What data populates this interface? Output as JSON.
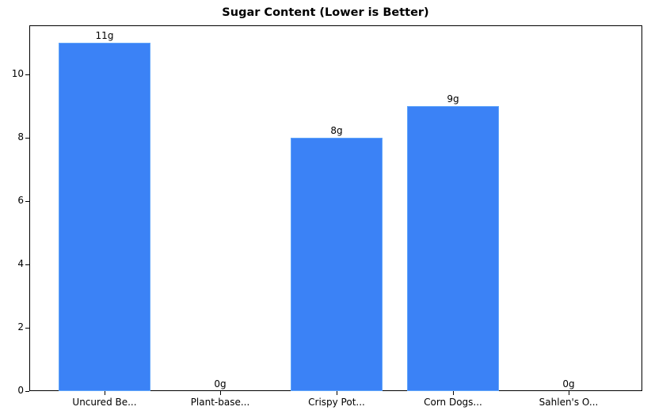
{
  "chart_data": {
    "type": "bar",
    "title": "Sugar Content (Lower is Better)",
    "xlabel": "",
    "ylabel": "",
    "categories": [
      "Uncured Be...",
      "Plant-base...",
      "Crispy Pot...",
      "Corn Dogs...",
      "Sahlen's O..."
    ],
    "values": [
      11,
      0,
      8,
      9,
      0
    ],
    "value_labels": [
      "11g",
      "0g",
      "8g",
      "9g",
      "0g"
    ],
    "ylim": [
      0,
      11.55
    ],
    "yticks": [
      0,
      2,
      4,
      6,
      8,
      10
    ],
    "grid": false,
    "bar_color": "#3b82f6",
    "bar_edge_color": "#60a5fa"
  }
}
